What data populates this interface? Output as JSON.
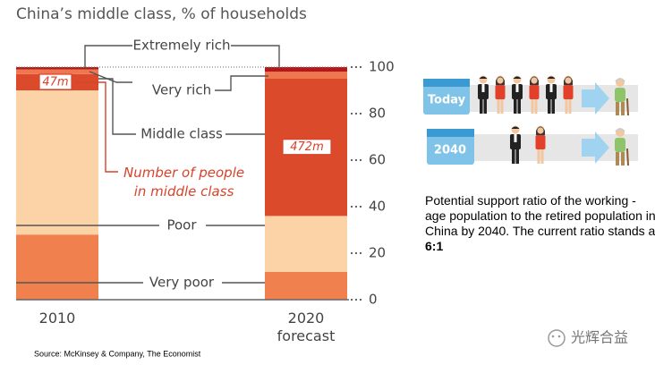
{
  "chart_data": {
    "type": "stacked_bar",
    "title": "China’s middle class, % of households",
    "categories": [
      "2010",
      "2020\nforecast"
    ],
    "series": [
      {
        "name": "Very poor",
        "color": "#f0814f",
        "values": [
          28,
          12
        ]
      },
      {
        "name": "Poor",
        "color": "#fcd3a6",
        "values": [
          62,
          24
        ]
      },
      {
        "name": "Middle class",
        "color": "#dc4a2c",
        "values": [
          7,
          59
        ]
      },
      {
        "name": "Very rich",
        "color": "#f07650",
        "values": [
          2,
          3
        ]
      },
      {
        "name": "Extremely rich",
        "color": "#b4191a",
        "values": [
          1,
          2
        ]
      }
    ],
    "annotation": "Number of people\nin middle class",
    "middle_class_people": [
      "47m",
      "472m"
    ],
    "ylim": [
      0,
      100
    ],
    "yticks": [
      0,
      20,
      40,
      60,
      80,
      100
    ]
  },
  "infographic": {
    "rows": [
      "Today",
      "2040"
    ],
    "text": "Potential support ratio of the working - age population to the retired population in China by 2040. The current ratio stands at",
    "ratio": "6:1"
  },
  "source": "Source: McKinsey & Company, The Economist",
  "watermark": "光辉合益"
}
